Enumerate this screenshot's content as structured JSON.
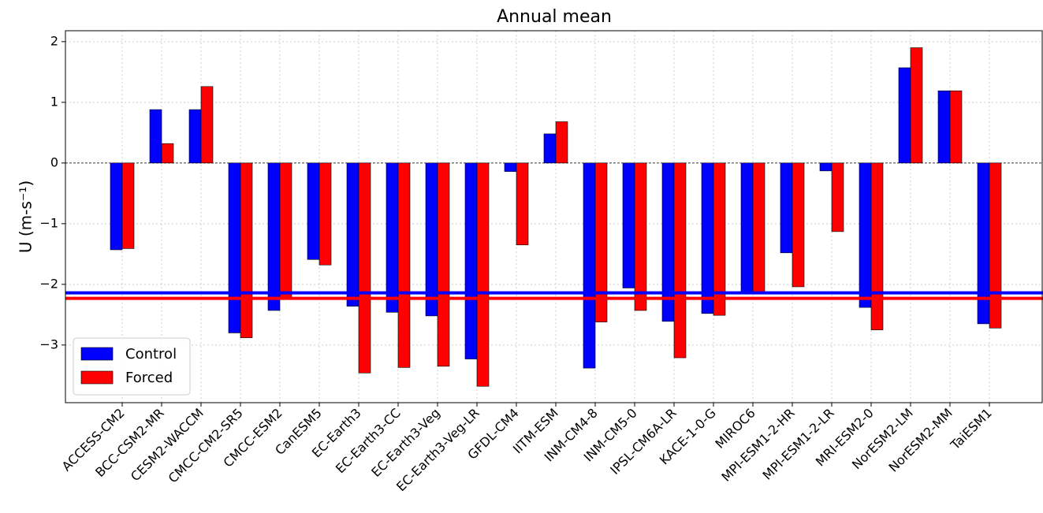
{
  "chart_data": {
    "type": "bar",
    "title": "Annual mean",
    "y_label": "U (m-s⁻¹)",
    "categories": [
      "ACCESS-CM2",
      "BCC-CSM2-MR",
      "CESM2-WACCM",
      "CMCC-CM2-SR5",
      "CMCC-ESM2",
      "CanESM5",
      "EC-Earth3",
      "EC-Earth3-CC",
      "EC-Earth3-Veg",
      "EC-Earth3-Veg-LR",
      "GFDL-CM4",
      "IITM-ESM",
      "INM-CM4-8",
      "INM-CM5-0",
      "IPSL-CM6A-LR",
      "KACE-1-0-G",
      "MIROC6",
      "MPI-ESM1-2-HR",
      "MPI-ESM1-2-LR",
      "MRI-ESM2-0",
      "NorESM2-LM",
      "NorESM2-MM",
      "TaiESM1"
    ],
    "series": [
      {
        "name": "Control",
        "color": "#0000ff",
        "values": [
          -1.43,
          0.88,
          0.88,
          -2.8,
          -2.43,
          -1.59,
          -2.36,
          -2.46,
          -2.52,
          -3.23,
          -0.14,
          0.48,
          -3.38,
          -2.06,
          -2.61,
          -2.48,
          -2.12,
          -1.48,
          -0.13,
          -2.38,
          1.57,
          1.19,
          -2.65
        ]
      },
      {
        "name": "Forced",
        "color": "#ff0000",
        "values": [
          -1.41,
          0.32,
          1.26,
          -2.88,
          -2.22,
          -1.68,
          -3.46,
          -3.37,
          -3.35,
          -3.68,
          -1.35,
          0.68,
          -2.62,
          -2.43,
          -3.21,
          -2.51,
          -2.15,
          -2.04,
          -1.13,
          -2.75,
          1.9,
          1.19,
          -2.72
        ]
      }
    ],
    "hlines": [
      {
        "value": -2.14,
        "color": "#0000ff"
      },
      {
        "value": -2.23,
        "color": "#ff0000"
      }
    ],
    "ylim": [
      -3.95,
      2.18
    ],
    "yticks": [
      {
        "value": -3,
        "label": "−3"
      },
      {
        "value": -2,
        "label": "−2"
      },
      {
        "value": -1,
        "label": "−1"
      },
      0,
      1,
      2
    ],
    "grid": true,
    "legend": "lower left"
  }
}
